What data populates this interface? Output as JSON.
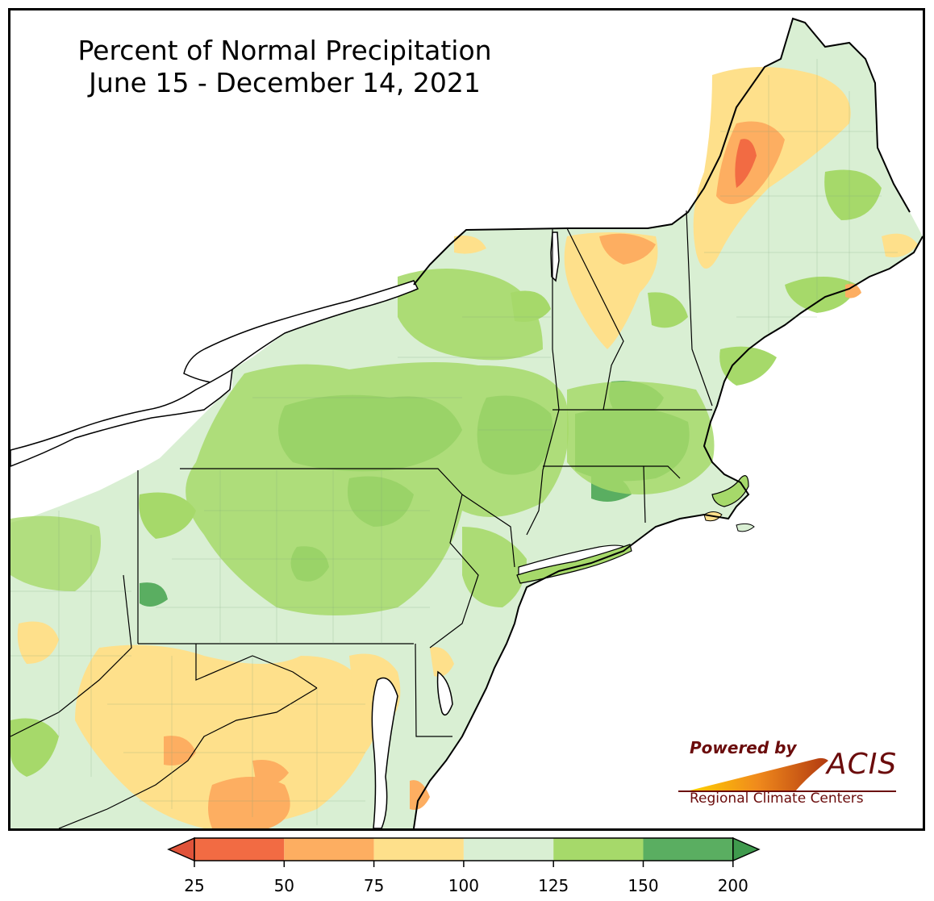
{
  "title": {
    "line1": "Percent of Normal Precipitation",
    "line2": "June 15 - December 14, 2021"
  },
  "logo": {
    "powered_by": "Powered by",
    "name": "ACIS",
    "subtitle": "Regional Climate Centers"
  },
  "legend": {
    "ticks": [
      "25",
      "50",
      "75",
      "100",
      "125",
      "150",
      "200"
    ],
    "colors": [
      "#f26b43",
      "#fdae61",
      "#fee08b",
      "#d9efd3",
      "#a6d96a",
      "#5aae61"
    ],
    "under_color": "#e0533a",
    "over_color": "#3f9a4d"
  },
  "colors": {
    "land_default": "#d9efd3",
    "water": "#ffffff",
    "border": "#000000"
  }
}
